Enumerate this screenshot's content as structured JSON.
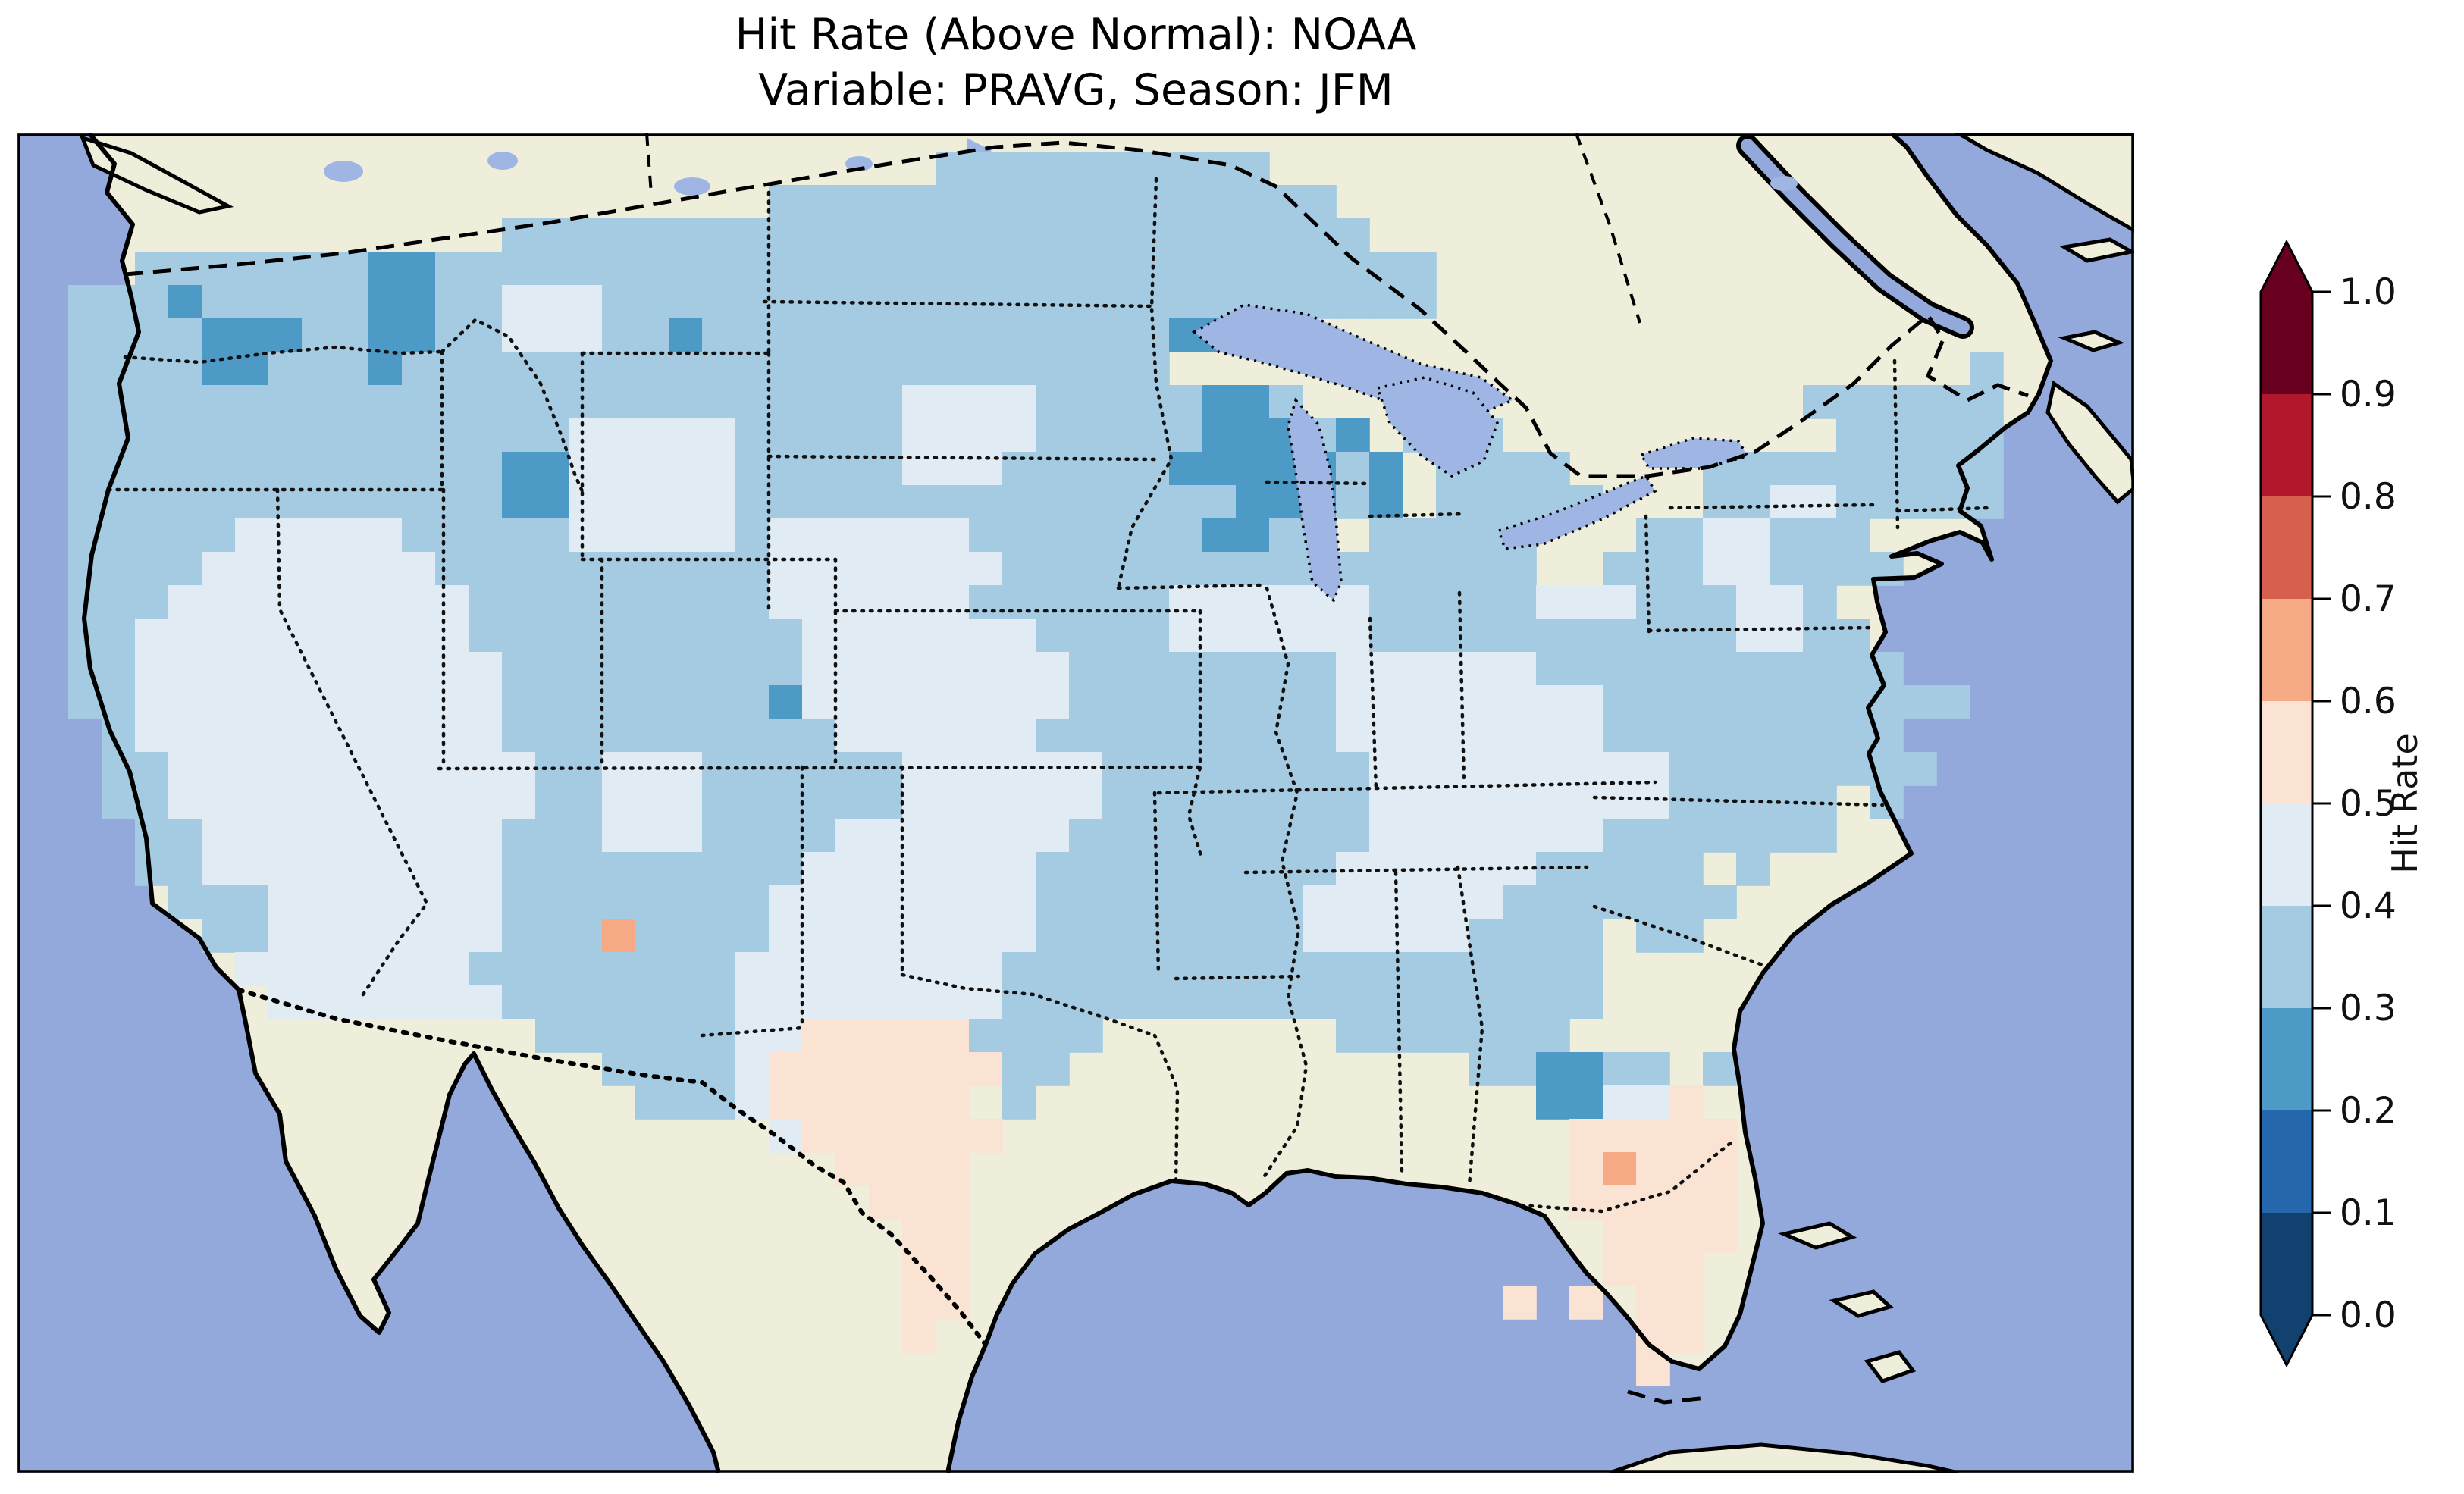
{
  "figure": {
    "title_line1": "Hit Rate (Above Normal): NOAA",
    "title_line2": "Variable: PRAVG, Season: JFM"
  },
  "colorbar": {
    "label": "Hit Rate",
    "tick_labels": [
      "1.0",
      "0.9",
      "0.8",
      "0.7",
      "0.6",
      "0.5",
      "0.4",
      "0.3",
      "0.2",
      "0.1",
      "0.0"
    ],
    "bin_colors_low_to_high": [
      "#12406f",
      "#2467ac",
      "#4e9ac6",
      "#a5cbe2",
      "#e0ebf3",
      "#fbe3d4",
      "#f5a984",
      "#d6604d",
      "#b2182b",
      "#67001f"
    ],
    "extend": "both"
  },
  "map_colors": {
    "ocean": "#93a9db",
    "land": "#eeeeda",
    "lakes": "#9fb6e4",
    "coastline": "#000000"
  },
  "chart_data": {
    "type": "heatmap",
    "title": "Hit Rate (Above Normal): NOAA",
    "subtitle": "Variable: PRAVG, Season: JFM",
    "dataset": "NOAA",
    "variable": "PRAVG",
    "season": "JFM",
    "value_label": "Hit Rate",
    "value_range": [
      0.0,
      1.0
    ],
    "bin_width": 0.1,
    "legend_position": "right",
    "grid_encoding": "Rows run north to south, characters west to east across the CONUS map; '.' = no data (outside the U.S. grid); digit d = hit rate bin [d/10, (d+1)/10). E.g. '3' = 0.3-0.4.",
    "grid": [
      "..........................3333333333......................",
      ".....................33333333333333333....................",
      ".............33333333333333333333333333..................._",
      "..333333322333333333333333333333333333333..................",
      "33323333322334443333333333333333333333333.................",
      "33332223322334443323333333333333322........................",
      "333322333233333333333333333333333........................333.",
      "3333333333333333333333333444433333223...............333333",
      "333333333333333444443333344443333322232.333..........33333333.",
      "3333333333333224444433333444333332222232.3333....333333333..",
      "3333333333333224444433333333333333322232.33333...3344333333...",
      "33333444443333344444344444433333332233.33333...3344333.....",
      "33334444444333333333344444443333333333333333..333443333.....",
      "33344444444433333333344444433333344444433333444333443.....",
      "334444444444333333333344444443333444444333333333334433.....",
      "3344444444444333333333444444443333333344444433333333333....",
      "334444444444433333333244444444333333334444444433333333333..",
      ".344444444444333333333344444433333333344444444333333333..",
      ".3344444444444334443333334444443333333344444444433333333....",
      ".3344444444444334443333334444443333333344444444433333 3.....",
      "..334444444443334443333444444433333333344444443333333......",
      "..33444444444333333333444444433333333344444433333 3.......",
      "...33344444443333333344444444333333334444443333333........",
      "....334444444333633334444444433333333444443333 33..........",
      ".....44444443333333344444444333333333333333333............",
      "......4444444333333344444444333333333333333333............",
      "..............33333344555553333.......3333333.............",
      "................33334555555533............332233 3.........",
      ".................3334555555 3...............22445.........",
      ".....................4555555.................55555........",
      ".......................5555..................56555........",
      "........................555..................55555........",
      ".........................55...................5555........",
      ".........................55...................555.........",
      ".........................55................5.5.55.........",
      ".........................5.....................55.........",
      "...............................................5.........."
    ]
  }
}
